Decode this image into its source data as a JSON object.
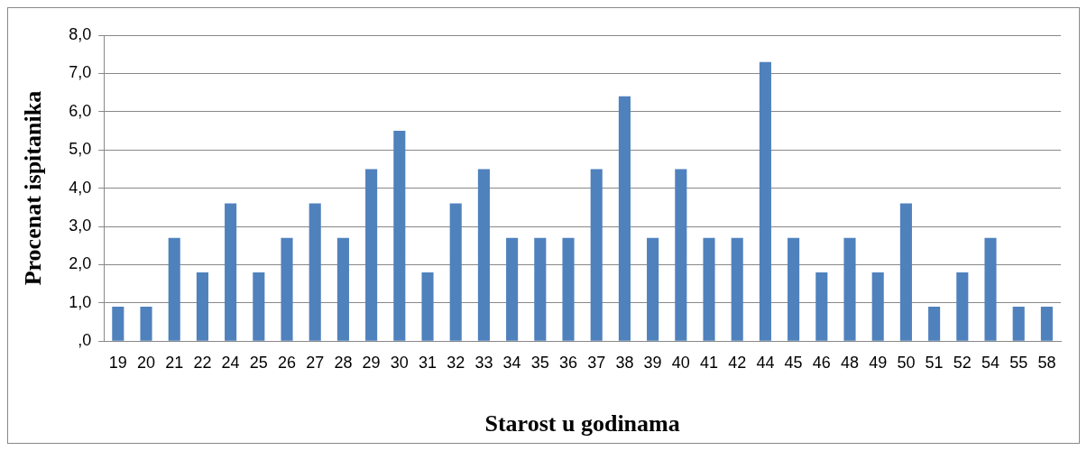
{
  "chart_data": {
    "type": "bar",
    "xlabel": "Starost u godinama",
    "ylabel": "Procenat ispitanika",
    "categories": [
      "19",
      "20",
      "21",
      "22",
      "24",
      "25",
      "26",
      "27",
      "28",
      "29",
      "30",
      "31",
      "32",
      "33",
      "34",
      "35",
      "36",
      "37",
      "38",
      "39",
      "40",
      "41",
      "42",
      "44",
      "45",
      "46",
      "48",
      "49",
      "50",
      "51",
      "52",
      "54",
      "55",
      "58"
    ],
    "values": [
      0.9,
      0.9,
      2.7,
      1.8,
      3.6,
      1.8,
      2.7,
      3.6,
      2.7,
      4.5,
      5.5,
      1.8,
      3.6,
      4.5,
      2.7,
      2.7,
      2.7,
      4.5,
      6.4,
      2.7,
      4.5,
      2.7,
      2.7,
      7.3,
      2.7,
      1.8,
      2.7,
      1.8,
      3.6,
      0.9,
      1.8,
      2.7,
      0.9,
      0.9
    ],
    "color": "#4f81bd",
    "ylim": [
      0,
      8
    ],
    "yticks": [
      {
        "value": 0,
        "label": ",0"
      },
      {
        "value": 1,
        "label": "1,0"
      },
      {
        "value": 2,
        "label": "2,0"
      },
      {
        "value": 3,
        "label": "3,0"
      },
      {
        "value": 4,
        "label": "4,0"
      },
      {
        "value": 5,
        "label": "5,0"
      },
      {
        "value": 6,
        "label": "6,0"
      },
      {
        "value": 7,
        "label": "7,0"
      },
      {
        "value": 8,
        "label": "8,0"
      }
    ],
    "grid": "y",
    "legend": false
  }
}
